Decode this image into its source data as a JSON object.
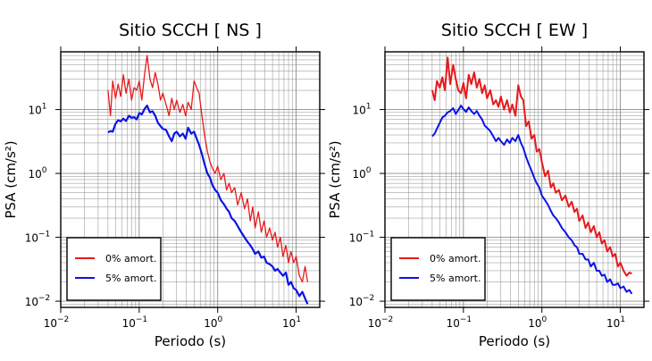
{
  "chart_data": [
    {
      "type": "line",
      "title": "Sitio SCCH [ NS ]",
      "xlabel": "Periodo (s)",
      "ylabel": "PSA (cm/s²)",
      "xscale": "log",
      "yscale": "log",
      "xlim": [
        0.01,
        20
      ],
      "ylim": [
        0.008,
        80
      ],
      "xticks": [
        {
          "v": 0.01,
          "base": "10",
          "exp": "−2"
        },
        {
          "v": 0.1,
          "base": "10",
          "exp": "−1"
        },
        {
          "v": 1,
          "base": "10",
          "exp": "0"
        },
        {
          "v": 10,
          "base": "10",
          "exp": "1"
        }
      ],
      "yticks": [
        {
          "v": 0.01,
          "base": "10",
          "exp": "−2"
        },
        {
          "v": 0.1,
          "base": "10",
          "exp": "−1"
        },
        {
          "v": 1,
          "base": "10",
          "exp": "0"
        },
        {
          "v": 10,
          "base": "10",
          "exp": "1"
        }
      ],
      "grid": true,
      "legend_position": "bottom-left",
      "series": [
        {
          "name": "0% amort.",
          "color": "#e8191c",
          "width": 1.3,
          "x": [
            0.04,
            0.043,
            0.046,
            0.05,
            0.054,
            0.058,
            0.063,
            0.068,
            0.074,
            0.08,
            0.086,
            0.093,
            0.1,
            0.108,
            0.117,
            0.126,
            0.137,
            0.148,
            0.16,
            0.173,
            0.187,
            0.2,
            0.22,
            0.24,
            0.26,
            0.28,
            0.3,
            0.33,
            0.36,
            0.39,
            0.42,
            0.46,
            0.5,
            0.54,
            0.58,
            0.63,
            0.68,
            0.74,
            0.8,
            0.86,
            0.93,
            1.0,
            1.1,
            1.2,
            1.3,
            1.4,
            1.5,
            1.65,
            1.8,
            2.0,
            2.2,
            2.4,
            2.6,
            2.8,
            3.0,
            3.3,
            3.6,
            3.9,
            4.2,
            4.6,
            5.0,
            5.4,
            5.8,
            6.3,
            6.8,
            7.4,
            8.0,
            8.6,
            9.3,
            10,
            11,
            12,
            13,
            14
          ],
          "y": [
            20,
            8,
            28,
            15,
            25,
            16,
            35,
            18,
            30,
            14,
            22,
            20,
            28,
            14,
            35,
            70,
            30,
            22,
            38,
            25,
            14,
            18,
            12,
            8,
            15,
            10,
            14,
            9,
            12,
            8,
            13,
            10,
            28,
            22,
            18,
            8,
            4,
            2.2,
            1.5,
            1.2,
            1.0,
            1.3,
            0.8,
            1.0,
            0.55,
            0.7,
            0.5,
            0.6,
            0.32,
            0.5,
            0.28,
            0.4,
            0.18,
            0.3,
            0.14,
            0.25,
            0.12,
            0.18,
            0.1,
            0.14,
            0.09,
            0.12,
            0.07,
            0.1,
            0.05,
            0.075,
            0.04,
            0.06,
            0.04,
            0.05,
            0.025,
            0.02,
            0.035,
            0.02
          ]
        },
        {
          "name": "5% amort.",
          "color": "#0a14e6",
          "width": 2.2,
          "x": [
            0.04,
            0.043,
            0.046,
            0.05,
            0.054,
            0.058,
            0.063,
            0.068,
            0.074,
            0.08,
            0.086,
            0.093,
            0.1,
            0.108,
            0.117,
            0.126,
            0.137,
            0.148,
            0.16,
            0.173,
            0.187,
            0.2,
            0.22,
            0.24,
            0.26,
            0.28,
            0.3,
            0.33,
            0.36,
            0.39,
            0.42,
            0.46,
            0.5,
            0.54,
            0.58,
            0.63,
            0.68,
            0.74,
            0.8,
            0.86,
            0.93,
            1.0,
            1.1,
            1.2,
            1.3,
            1.4,
            1.5,
            1.65,
            1.8,
            2.0,
            2.2,
            2.4,
            2.6,
            2.8,
            3.0,
            3.3,
            3.6,
            3.9,
            4.2,
            4.6,
            5.0,
            5.4,
            5.8,
            6.3,
            6.8,
            7.4,
            8.0,
            8.6,
            9.3,
            10,
            11,
            12,
            13,
            14
          ],
          "y": [
            4.4,
            4.6,
            4.5,
            6.0,
            6.8,
            6.5,
            7.2,
            6.6,
            8.0,
            7.4,
            7.6,
            7.0,
            8.8,
            8.4,
            10.2,
            11.5,
            9.0,
            9.4,
            8.0,
            6.2,
            5.5,
            5.0,
            4.8,
            3.8,
            3.2,
            4.2,
            4.5,
            3.8,
            4.2,
            3.5,
            5.2,
            4.2,
            4.5,
            3.5,
            2.8,
            2.0,
            1.4,
            1.0,
            0.85,
            0.65,
            0.55,
            0.5,
            0.38,
            0.33,
            0.28,
            0.25,
            0.2,
            0.18,
            0.15,
            0.12,
            0.1,
            0.085,
            0.075,
            0.065,
            0.055,
            0.06,
            0.048,
            0.05,
            0.04,
            0.038,
            0.035,
            0.03,
            0.032,
            0.028,
            0.025,
            0.028,
            0.018,
            0.02,
            0.016,
            0.015,
            0.012,
            0.014,
            0.011,
            0.009
          ]
        }
      ]
    },
    {
      "type": "line",
      "title": "Sitio SCCH [ EW ]",
      "xlabel": "Periodo (s)",
      "ylabel": "PSA (cm/s²)",
      "xscale": "log",
      "yscale": "log",
      "xlim": [
        0.01,
        20
      ],
      "ylim": [
        0.008,
        80
      ],
      "xticks": [
        {
          "v": 0.01,
          "base": "10",
          "exp": "−2"
        },
        {
          "v": 0.1,
          "base": "10",
          "exp": "−1"
        },
        {
          "v": 1,
          "base": "10",
          "exp": "0"
        },
        {
          "v": 10,
          "base": "10",
          "exp": "1"
        }
      ],
      "yticks": [
        {
          "v": 0.01,
          "base": "10",
          "exp": "−2"
        },
        {
          "v": 0.1,
          "base": "10",
          "exp": "−1"
        },
        {
          "v": 1,
          "base": "10",
          "exp": "0"
        },
        {
          "v": 10,
          "base": "10",
          "exp": "1"
        }
      ],
      "grid": true,
      "legend_position": "bottom-left",
      "series": [
        {
          "name": "0% amort.",
          "color": "#e8191c",
          "width": 2.0,
          "x": [
            0.04,
            0.043,
            0.046,
            0.05,
            0.054,
            0.058,
            0.063,
            0.068,
            0.074,
            0.08,
            0.086,
            0.093,
            0.1,
            0.108,
            0.117,
            0.126,
            0.137,
            0.148,
            0.16,
            0.173,
            0.187,
            0.2,
            0.22,
            0.24,
            0.26,
            0.28,
            0.3,
            0.33,
            0.36,
            0.39,
            0.42,
            0.46,
            0.5,
            0.54,
            0.58,
            0.63,
            0.68,
            0.74,
            0.8,
            0.86,
            0.93,
            1.0,
            1.1,
            1.2,
            1.3,
            1.4,
            1.5,
            1.65,
            1.8,
            2.0,
            2.2,
            2.4,
            2.6,
            2.8,
            3.0,
            3.3,
            3.6,
            3.9,
            4.2,
            4.6,
            5.0,
            5.4,
            5.8,
            6.3,
            6.8,
            7.4,
            8.0,
            8.6,
            9.3,
            10,
            11,
            12,
            13,
            14
          ],
          "y": [
            20,
            14,
            28,
            22,
            32,
            20,
            65,
            25,
            50,
            30,
            20,
            18,
            26,
            15,
            35,
            25,
            38,
            22,
            30,
            18,
            24,
            15,
            20,
            12,
            14,
            11,
            16,
            10,
            14,
            9,
            12,
            8,
            24,
            16,
            14,
            5.5,
            6.5,
            3.5,
            4.0,
            2.2,
            2.4,
            1.5,
            0.9,
            1.1,
            0.6,
            0.7,
            0.5,
            0.55,
            0.38,
            0.45,
            0.3,
            0.36,
            0.25,
            0.28,
            0.18,
            0.22,
            0.14,
            0.17,
            0.12,
            0.15,
            0.1,
            0.12,
            0.08,
            0.09,
            0.06,
            0.07,
            0.05,
            0.055,
            0.035,
            0.04,
            0.03,
            0.025,
            0.028,
            0.027
          ]
        },
        {
          "name": "5% amort.",
          "color": "#0a14e6",
          "width": 2.0,
          "x": [
            0.04,
            0.043,
            0.046,
            0.05,
            0.054,
            0.058,
            0.063,
            0.068,
            0.074,
            0.08,
            0.086,
            0.093,
            0.1,
            0.108,
            0.117,
            0.126,
            0.137,
            0.148,
            0.16,
            0.173,
            0.187,
            0.2,
            0.22,
            0.24,
            0.26,
            0.28,
            0.3,
            0.33,
            0.36,
            0.39,
            0.42,
            0.46,
            0.5,
            0.54,
            0.58,
            0.63,
            0.68,
            0.74,
            0.8,
            0.86,
            0.93,
            1.0,
            1.1,
            1.2,
            1.3,
            1.4,
            1.5,
            1.65,
            1.8,
            2.0,
            2.2,
            2.4,
            2.6,
            2.8,
            3.0,
            3.3,
            3.6,
            3.9,
            4.2,
            4.6,
            5.0,
            5.4,
            5.8,
            6.3,
            6.8,
            7.4,
            8.0,
            8.6,
            9.3,
            10,
            11,
            12,
            13,
            14
          ],
          "y": [
            3.8,
            4.2,
            5.0,
            6.2,
            7.5,
            8.0,
            9.0,
            9.5,
            10.5,
            8.5,
            9.8,
            11.5,
            10.2,
            9.2,
            10.8,
            9.5,
            8.5,
            9.5,
            8.0,
            7.0,
            5.6,
            5.2,
            4.6,
            3.8,
            3.2,
            3.6,
            3.2,
            2.8,
            3.4,
            3.0,
            3.6,
            3.2,
            4.0,
            3.0,
            2.5,
            1.8,
            1.4,
            1.1,
            0.85,
            0.7,
            0.6,
            0.45,
            0.38,
            0.32,
            0.26,
            0.22,
            0.2,
            0.17,
            0.14,
            0.12,
            0.1,
            0.09,
            0.075,
            0.07,
            0.055,
            0.055,
            0.045,
            0.045,
            0.035,
            0.04,
            0.03,
            0.03,
            0.025,
            0.026,
            0.02,
            0.022,
            0.018,
            0.018,
            0.019,
            0.016,
            0.017,
            0.014,
            0.015,
            0.013
          ]
        }
      ]
    }
  ]
}
